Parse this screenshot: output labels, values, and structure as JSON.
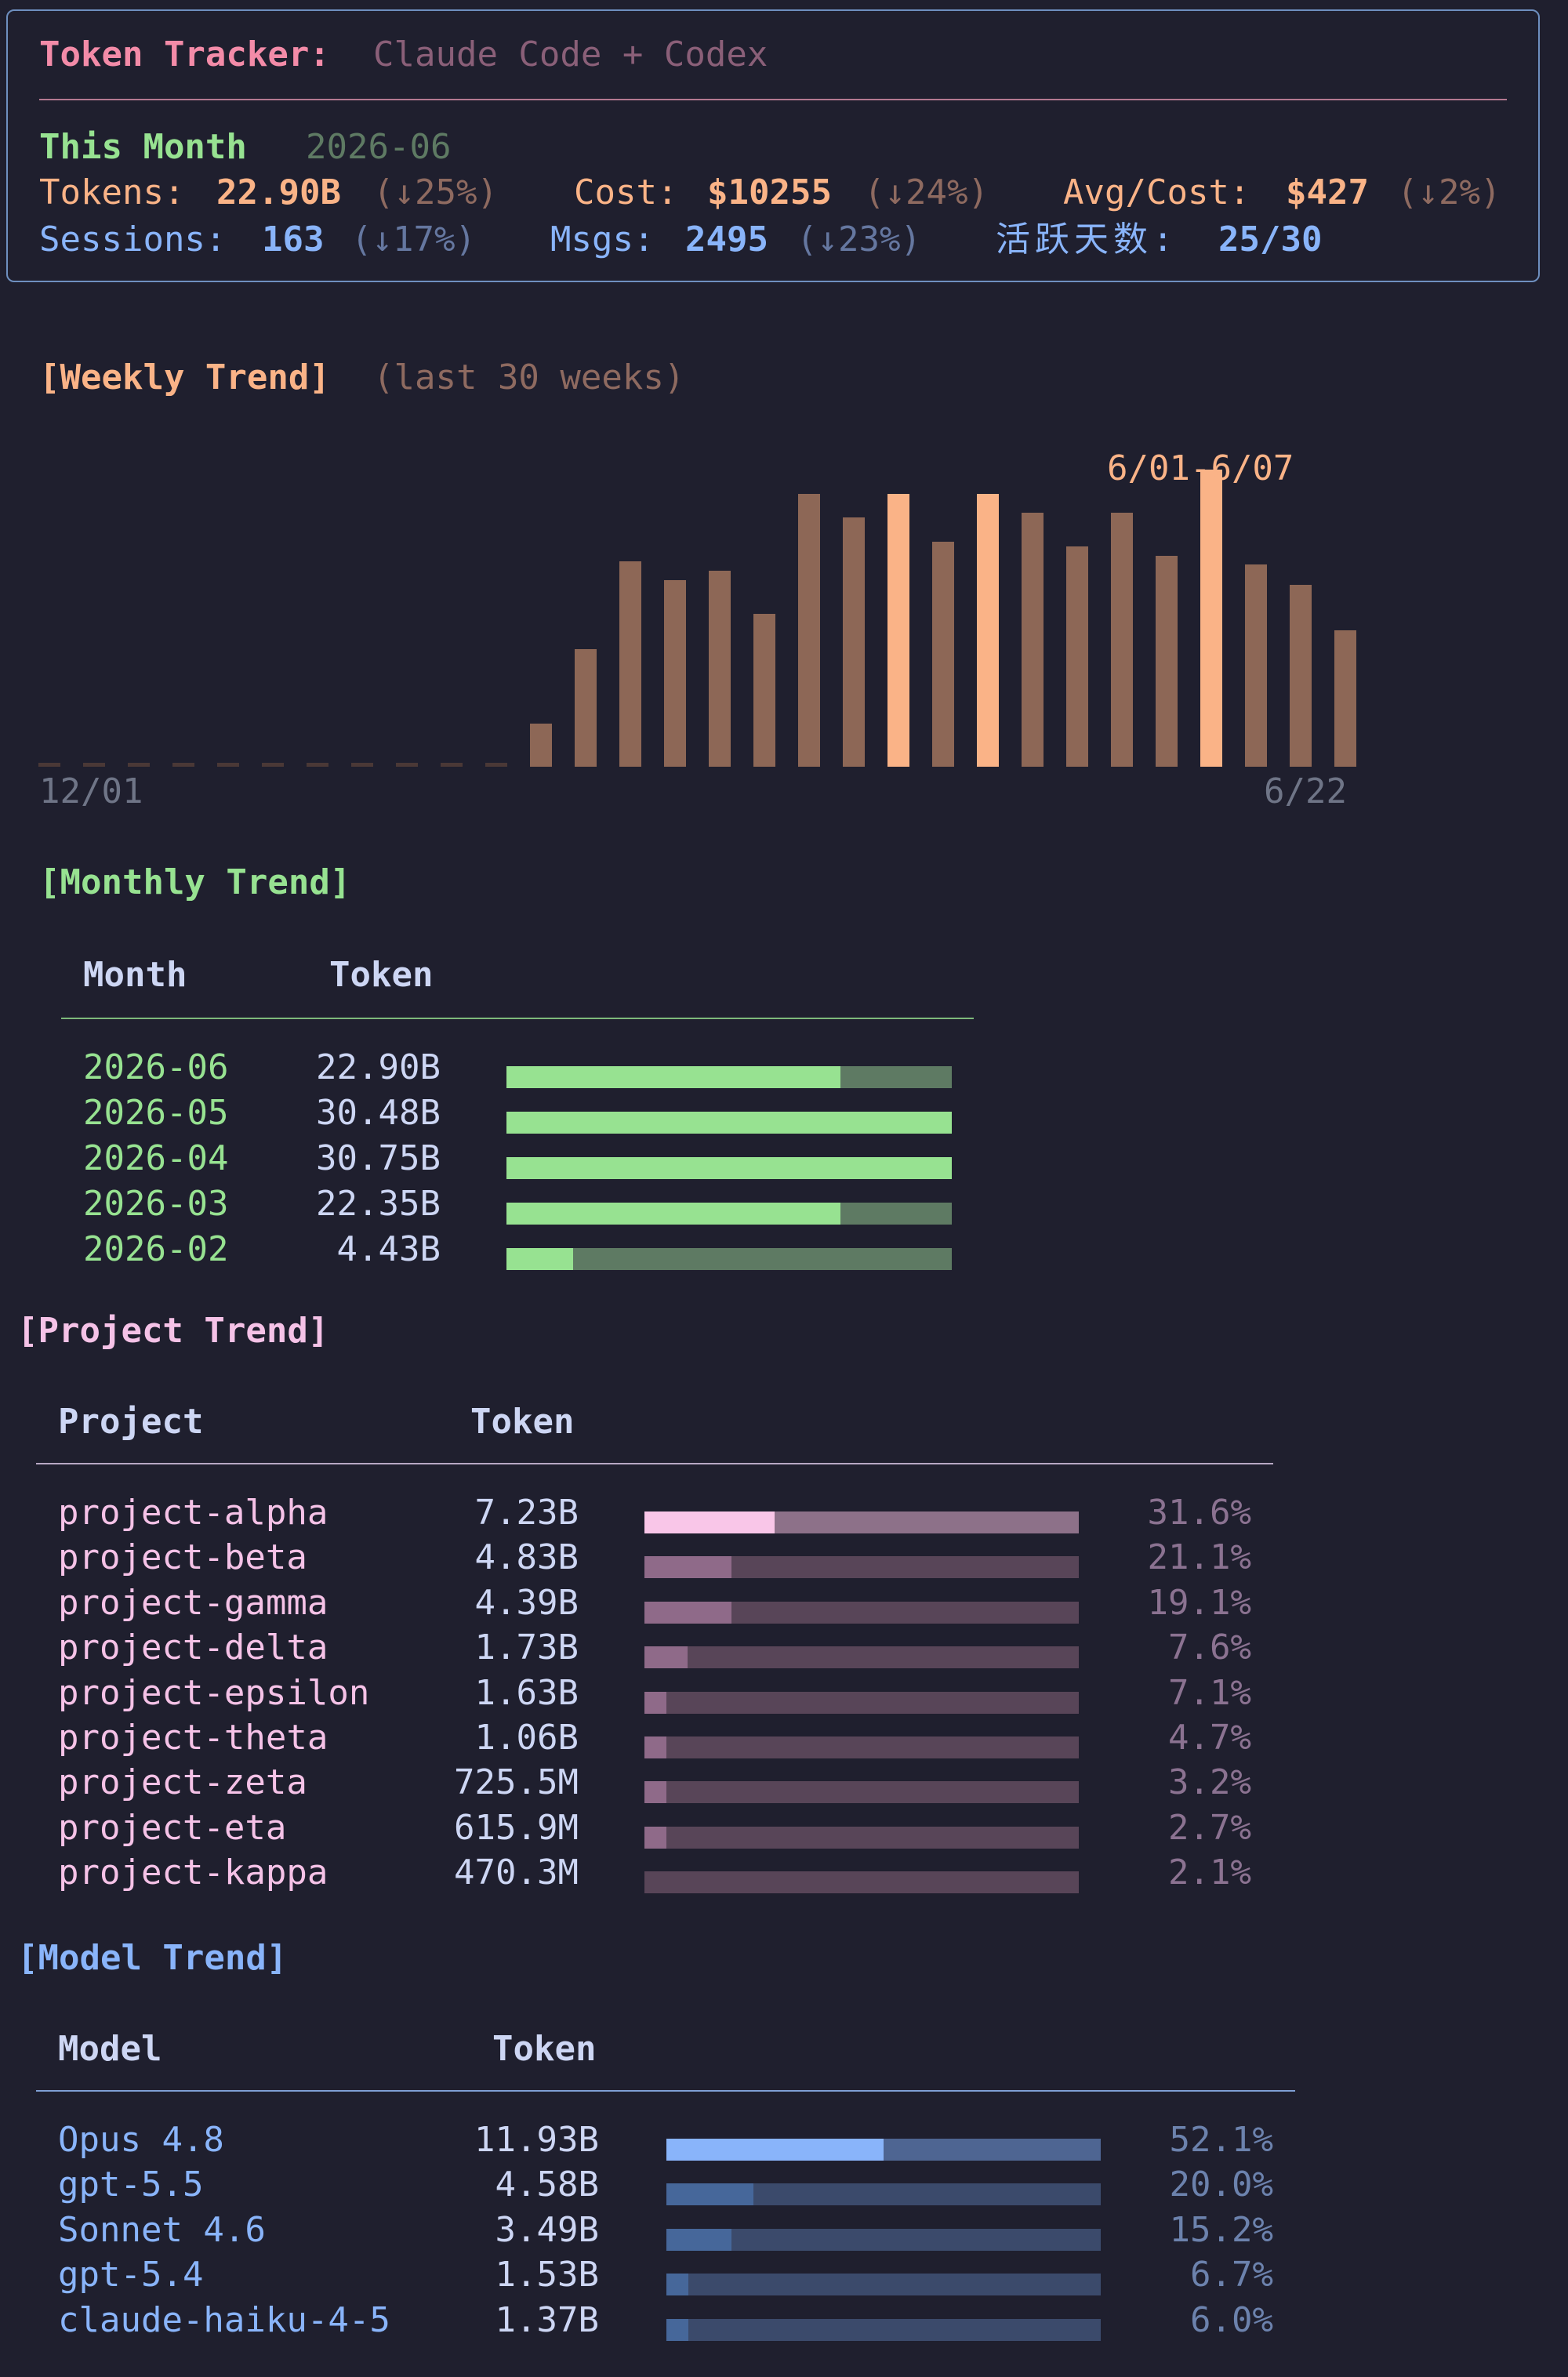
{
  "header": {
    "title_label": "Token Tracker:",
    "title_subtitle": "Claude Code + Codex",
    "period_label": "This Month",
    "period_value": "2026-06",
    "tokens_label": "Tokens:",
    "tokens_value": "22.90B",
    "tokens_change": "(↓25%)",
    "cost_label": "Cost:",
    "cost_value": "$10255",
    "cost_change": "(↓24%)",
    "avg_label": "Avg/Cost:",
    "avg_value": "$427",
    "avg_change": "(↓2%)",
    "sessions_label": "Sessions:",
    "sessions_value": "163",
    "sessions_change": "(↓17%)",
    "msgs_label": "Msgs:",
    "msgs_value": "2495",
    "msgs_change": "(↓23%)",
    "active_label": "活跃天数:",
    "active_value": "25/30"
  },
  "weekly": {
    "title": "[Weekly Trend]",
    "subtitle": "(last 30 weeks)",
    "x_start": "12/01",
    "x_end": "6/22",
    "peak_label": "6/01-6/07",
    "colors": {
      "normal": "#8d6756",
      "highlight": "#fab387",
      "empty": "#4a3836"
    }
  },
  "monthly": {
    "title": "[Monthly Trend]",
    "col_month": "Month",
    "col_token": "Token",
    "rows": [
      {
        "month": "2026-06",
        "token": "22.90B",
        "fill": 0.75
      },
      {
        "month": "2026-05",
        "token": "30.48B",
        "fill": 1.0
      },
      {
        "month": "2026-04",
        "token": "30.75B",
        "fill": 1.0
      },
      {
        "month": "2026-03",
        "token": "22.35B",
        "fill": 0.75
      },
      {
        "month": "2026-02",
        "token": "4.43B",
        "fill": 0.15
      }
    ]
  },
  "project": {
    "title": "[Project Trend]",
    "col_project": "Project",
    "col_token": "Token",
    "rows": [
      {
        "name": "project-alpha",
        "token": "7.23B",
        "pct": "31.6%",
        "fill": 0.3
      },
      {
        "name": "project-beta",
        "token": "4.83B",
        "pct": "21.1%",
        "fill": 0.2
      },
      {
        "name": "project-gamma",
        "token": "4.39B",
        "pct": "19.1%",
        "fill": 0.2
      },
      {
        "name": "project-delta",
        "token": "1.73B",
        "pct": "7.6%",
        "fill": 0.1
      },
      {
        "name": "project-epsilon",
        "token": "1.63B",
        "pct": "7.1%",
        "fill": 0.05
      },
      {
        "name": "project-theta",
        "token": "1.06B",
        "pct": "4.7%",
        "fill": 0.05
      },
      {
        "name": "project-zeta",
        "token": "725.5M",
        "pct": "3.2%",
        "fill": 0.05
      },
      {
        "name": "project-eta",
        "token": "615.9M",
        "pct": "2.7%",
        "fill": 0.05
      },
      {
        "name": "project-kappa",
        "token": "470.3M",
        "pct": "2.1%",
        "fill": 0.0
      }
    ]
  },
  "model": {
    "title": "[Model Trend]",
    "col_model": "Model",
    "col_token": "Token",
    "rows": [
      {
        "name": "Opus 4.8",
        "token": "11.93B",
        "pct": "52.1%",
        "fill": 0.5
      },
      {
        "name": "gpt-5.5",
        "token": "4.58B",
        "pct": "20.0%",
        "fill": 0.2
      },
      {
        "name": "Sonnet 4.6",
        "token": "3.49B",
        "pct": "15.2%",
        "fill": 0.15
      },
      {
        "name": "gpt-5.4",
        "token": "1.53B",
        "pct": "6.7%",
        "fill": 0.05
      },
      {
        "name": "claude-haiku-4-5",
        "token": "1.37B",
        "pct": "6.0%",
        "fill": 0.05
      }
    ]
  },
  "chart_data": {
    "type": "bar",
    "title": "[Weekly Trend]",
    "subtitle": "(last 30 weeks)",
    "unit": "relative token volume (no axis printed)",
    "values": [
      0,
      0,
      0,
      0,
      0,
      0,
      0,
      0,
      0,
      0,
      0,
      27,
      73,
      128,
      116,
      122,
      95,
      170,
      155,
      170,
      140,
      170,
      158,
      137,
      158,
      131,
      185,
      126,
      113,
      85
    ],
    "highlighted_index": [
      19,
      21,
      26
    ],
    "peak_label": "6/01-6/07",
    "x_start": "12/01",
    "x_end": "6/22"
  }
}
